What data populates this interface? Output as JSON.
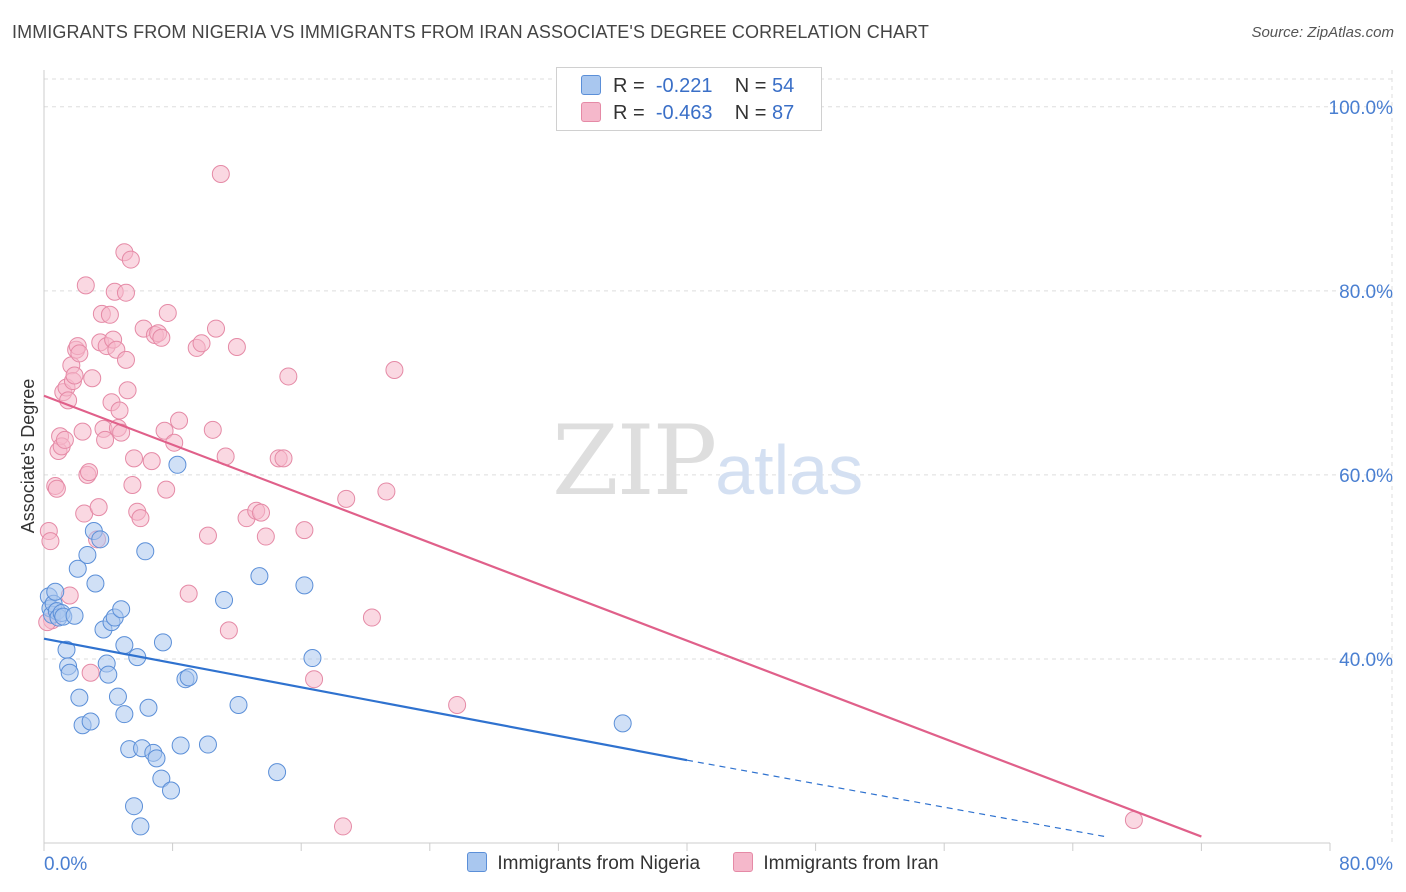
{
  "header": {
    "title": "IMMIGRANTS FROM NIGERIA VS IMMIGRANTS FROM IRAN ASSOCIATE'S DEGREE CORRELATION CHART",
    "source": "Source: ZipAtlas.com"
  },
  "watermark": {
    "zip": "ZIP",
    "atlas": "atlas"
  },
  "legend": {
    "rows": [
      {
        "r_label": "R =",
        "r_value": "-0.221",
        "n_label": "N =",
        "n_value": "54",
        "color": "#a9c7ef"
      },
      {
        "r_label": "R =",
        "r_value": "-0.463",
        "n_label": "N =",
        "n_value": "87",
        "color": "#f5b8cb"
      }
    ]
  },
  "bottom_legend": {
    "items": [
      {
        "label": "Immigrants from Nigeria",
        "color": "#a9c7ef"
      },
      {
        "label": "Immigrants from Iran",
        "color": "#f5b8cb"
      }
    ]
  },
  "colors": {
    "nigeria_fill": "#a9c7ef",
    "nigeria_stroke": "#5b8fd8",
    "nigeria_line": "#2f72cf",
    "iran_fill": "#f5b8cb",
    "iran_stroke": "#e58aa6",
    "iran_line": "#e0608a",
    "grid": "#dddddd",
    "tick_text": "#4a7fd1"
  },
  "chart_data": {
    "type": "scatter",
    "title": "IMMIGRANTS FROM NIGERIA VS IMMIGRANTS FROM IRAN ASSOCIATE'S DEGREE CORRELATION CHART",
    "xlabel": "",
    "ylabel": "Associate's Degree",
    "xlim": [
      0,
      80
    ],
    "ylim": [
      20,
      104
    ],
    "x_tick_labels": [
      {
        "value": 0,
        "label": "0.0%"
      },
      {
        "value": 80,
        "label": "80.0%"
      }
    ],
    "y_tick_labels": [
      {
        "value": 40,
        "label": "40.0%"
      },
      {
        "value": 60,
        "label": "60.0%"
      },
      {
        "value": 80,
        "label": "80.0%"
      },
      {
        "value": 100,
        "label": "100.0%"
      }
    ],
    "grid": true,
    "series": [
      {
        "name": "Immigrants from Nigeria",
        "R": -0.221,
        "N": 54,
        "trend": {
          "x0": 0,
          "y0": 42.2,
          "x1": 40,
          "y1": 29.0,
          "dash_to_x": 66,
          "dash_to_y": 20.7
        },
        "points": [
          [
            0.3,
            46.8
          ],
          [
            0.4,
            45.5
          ],
          [
            0.5,
            44.8
          ],
          [
            0.6,
            46.0
          ],
          [
            0.7,
            47.3
          ],
          [
            0.8,
            45.2
          ],
          [
            0.9,
            44.5
          ],
          [
            1.1,
            45.0
          ],
          [
            1.2,
            44.6
          ],
          [
            1.4,
            41.0
          ],
          [
            1.5,
            39.2
          ],
          [
            1.6,
            38.5
          ],
          [
            1.9,
            44.7
          ],
          [
            2.1,
            49.8
          ],
          [
            2.2,
            35.8
          ],
          [
            2.4,
            32.8
          ],
          [
            2.7,
            51.3
          ],
          [
            2.9,
            33.2
          ],
          [
            3.1,
            53.9
          ],
          [
            3.2,
            48.2
          ],
          [
            3.5,
            53.0
          ],
          [
            3.7,
            43.2
          ],
          [
            3.9,
            39.5
          ],
          [
            4.0,
            38.3
          ],
          [
            4.2,
            44.0
          ],
          [
            4.4,
            44.5
          ],
          [
            4.6,
            35.9
          ],
          [
            4.8,
            45.4
          ],
          [
            5.0,
            34.0
          ],
          [
            5.0,
            41.5
          ],
          [
            5.3,
            30.2
          ],
          [
            5.6,
            24.0
          ],
          [
            5.8,
            40.2
          ],
          [
            6.0,
            21.8
          ],
          [
            6.1,
            30.3
          ],
          [
            6.3,
            51.7
          ],
          [
            6.5,
            34.7
          ],
          [
            6.8,
            29.8
          ],
          [
            7.0,
            29.2
          ],
          [
            7.3,
            27.0
          ],
          [
            7.4,
            41.8
          ],
          [
            7.9,
            25.7
          ],
          [
            8.3,
            61.1
          ],
          [
            8.5,
            30.6
          ],
          [
            8.8,
            37.8
          ],
          [
            9.0,
            38.0
          ],
          [
            10.2,
            30.7
          ],
          [
            11.2,
            46.4
          ],
          [
            12.1,
            35.0
          ],
          [
            13.4,
            49.0
          ],
          [
            14.5,
            27.7
          ],
          [
            16.2,
            48.0
          ],
          [
            16.7,
            40.1
          ],
          [
            36.0,
            33.0
          ]
        ]
      },
      {
        "name": "Immigrants from Iran",
        "R": -0.463,
        "N": 87,
        "trend": {
          "x0": 0,
          "y0": 68.6,
          "x1": 72,
          "y1": 20.7
        },
        "points": [
          [
            0.3,
            53.9
          ],
          [
            0.4,
            52.8
          ],
          [
            0.5,
            44.2
          ],
          [
            0.7,
            58.8
          ],
          [
            0.8,
            58.5
          ],
          [
            0.9,
            62.6
          ],
          [
            1.0,
            64.2
          ],
          [
            1.1,
            63.1
          ],
          [
            1.2,
            69.0
          ],
          [
            1.3,
            63.8
          ],
          [
            1.4,
            69.5
          ],
          [
            1.5,
            68.1
          ],
          [
            1.6,
            46.9
          ],
          [
            1.7,
            71.9
          ],
          [
            1.8,
            70.2
          ],
          [
            1.9,
            70.8
          ],
          [
            2.0,
            73.6
          ],
          [
            2.1,
            74.0
          ],
          [
            2.2,
            73.2
          ],
          [
            2.4,
            64.7
          ],
          [
            2.5,
            55.8
          ],
          [
            2.6,
            80.6
          ],
          [
            2.7,
            60.0
          ],
          [
            2.8,
            60.3
          ],
          [
            2.9,
            38.5
          ],
          [
            3.0,
            70.5
          ],
          [
            3.3,
            53.0
          ],
          [
            3.4,
            56.5
          ],
          [
            3.5,
            74.4
          ],
          [
            3.6,
            77.5
          ],
          [
            3.7,
            65.0
          ],
          [
            3.8,
            63.8
          ],
          [
            3.9,
            74.0
          ],
          [
            4.1,
            77.4
          ],
          [
            4.2,
            67.9
          ],
          [
            4.3,
            74.7
          ],
          [
            4.4,
            79.9
          ],
          [
            4.5,
            73.6
          ],
          [
            4.6,
            65.1
          ],
          [
            4.7,
            67.0
          ],
          [
            4.8,
            64.6
          ],
          [
            5.0,
            84.2
          ],
          [
            5.1,
            79.8
          ],
          [
            5.1,
            72.5
          ],
          [
            5.2,
            69.2
          ],
          [
            5.4,
            83.4
          ],
          [
            5.5,
            58.9
          ],
          [
            5.6,
            61.8
          ],
          [
            5.8,
            56.0
          ],
          [
            6.0,
            55.3
          ],
          [
            6.2,
            75.9
          ],
          [
            6.7,
            61.5
          ],
          [
            6.9,
            75.2
          ],
          [
            7.1,
            75.4
          ],
          [
            7.3,
            74.9
          ],
          [
            7.5,
            64.8
          ],
          [
            7.6,
            58.4
          ],
          [
            7.7,
            77.6
          ],
          [
            8.1,
            63.5
          ],
          [
            8.4,
            65.9
          ],
          [
            9.0,
            47.1
          ],
          [
            9.5,
            73.8
          ],
          [
            9.8,
            74.3
          ],
          [
            10.2,
            53.4
          ],
          [
            10.5,
            64.9
          ],
          [
            10.7,
            75.9
          ],
          [
            11.0,
            92.7
          ],
          [
            11.3,
            62.0
          ],
          [
            11.5,
            43.1
          ],
          [
            12.0,
            73.9
          ],
          [
            12.6,
            55.3
          ],
          [
            13.2,
            56.1
          ],
          [
            13.5,
            55.9
          ],
          [
            13.8,
            53.3
          ],
          [
            14.6,
            61.8
          ],
          [
            14.9,
            61.8
          ],
          [
            15.2,
            70.7
          ],
          [
            16.2,
            54.0
          ],
          [
            16.8,
            37.8
          ],
          [
            18.6,
            21.8
          ],
          [
            18.8,
            57.4
          ],
          [
            20.4,
            44.5
          ],
          [
            21.3,
            58.2
          ],
          [
            21.8,
            71.4
          ],
          [
            25.7,
            35.0
          ],
          [
            67.8,
            22.5
          ],
          [
            0.2,
            44.0
          ]
        ]
      }
    ]
  }
}
